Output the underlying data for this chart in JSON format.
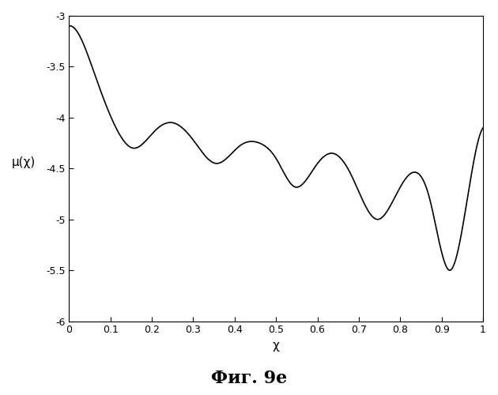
{
  "title_below": "Фиг. 9е",
  "xlabel": "χ",
  "ylabel": "μ(χ)",
  "xlim": [
    0,
    1
  ],
  "ylim": [
    -6,
    -3
  ],
  "xticks": [
    0,
    0.1,
    0.2,
    0.3,
    0.4,
    0.5,
    0.6,
    0.7,
    0.8,
    0.9,
    1
  ],
  "yticks": [
    -6,
    -5.5,
    -5,
    -4.5,
    -4,
    -3.5,
    -3
  ],
  "line_color": "#000000",
  "background_color": "#ffffff",
  "figsize": [
    6.3,
    5.0
  ],
  "dpi": 100
}
